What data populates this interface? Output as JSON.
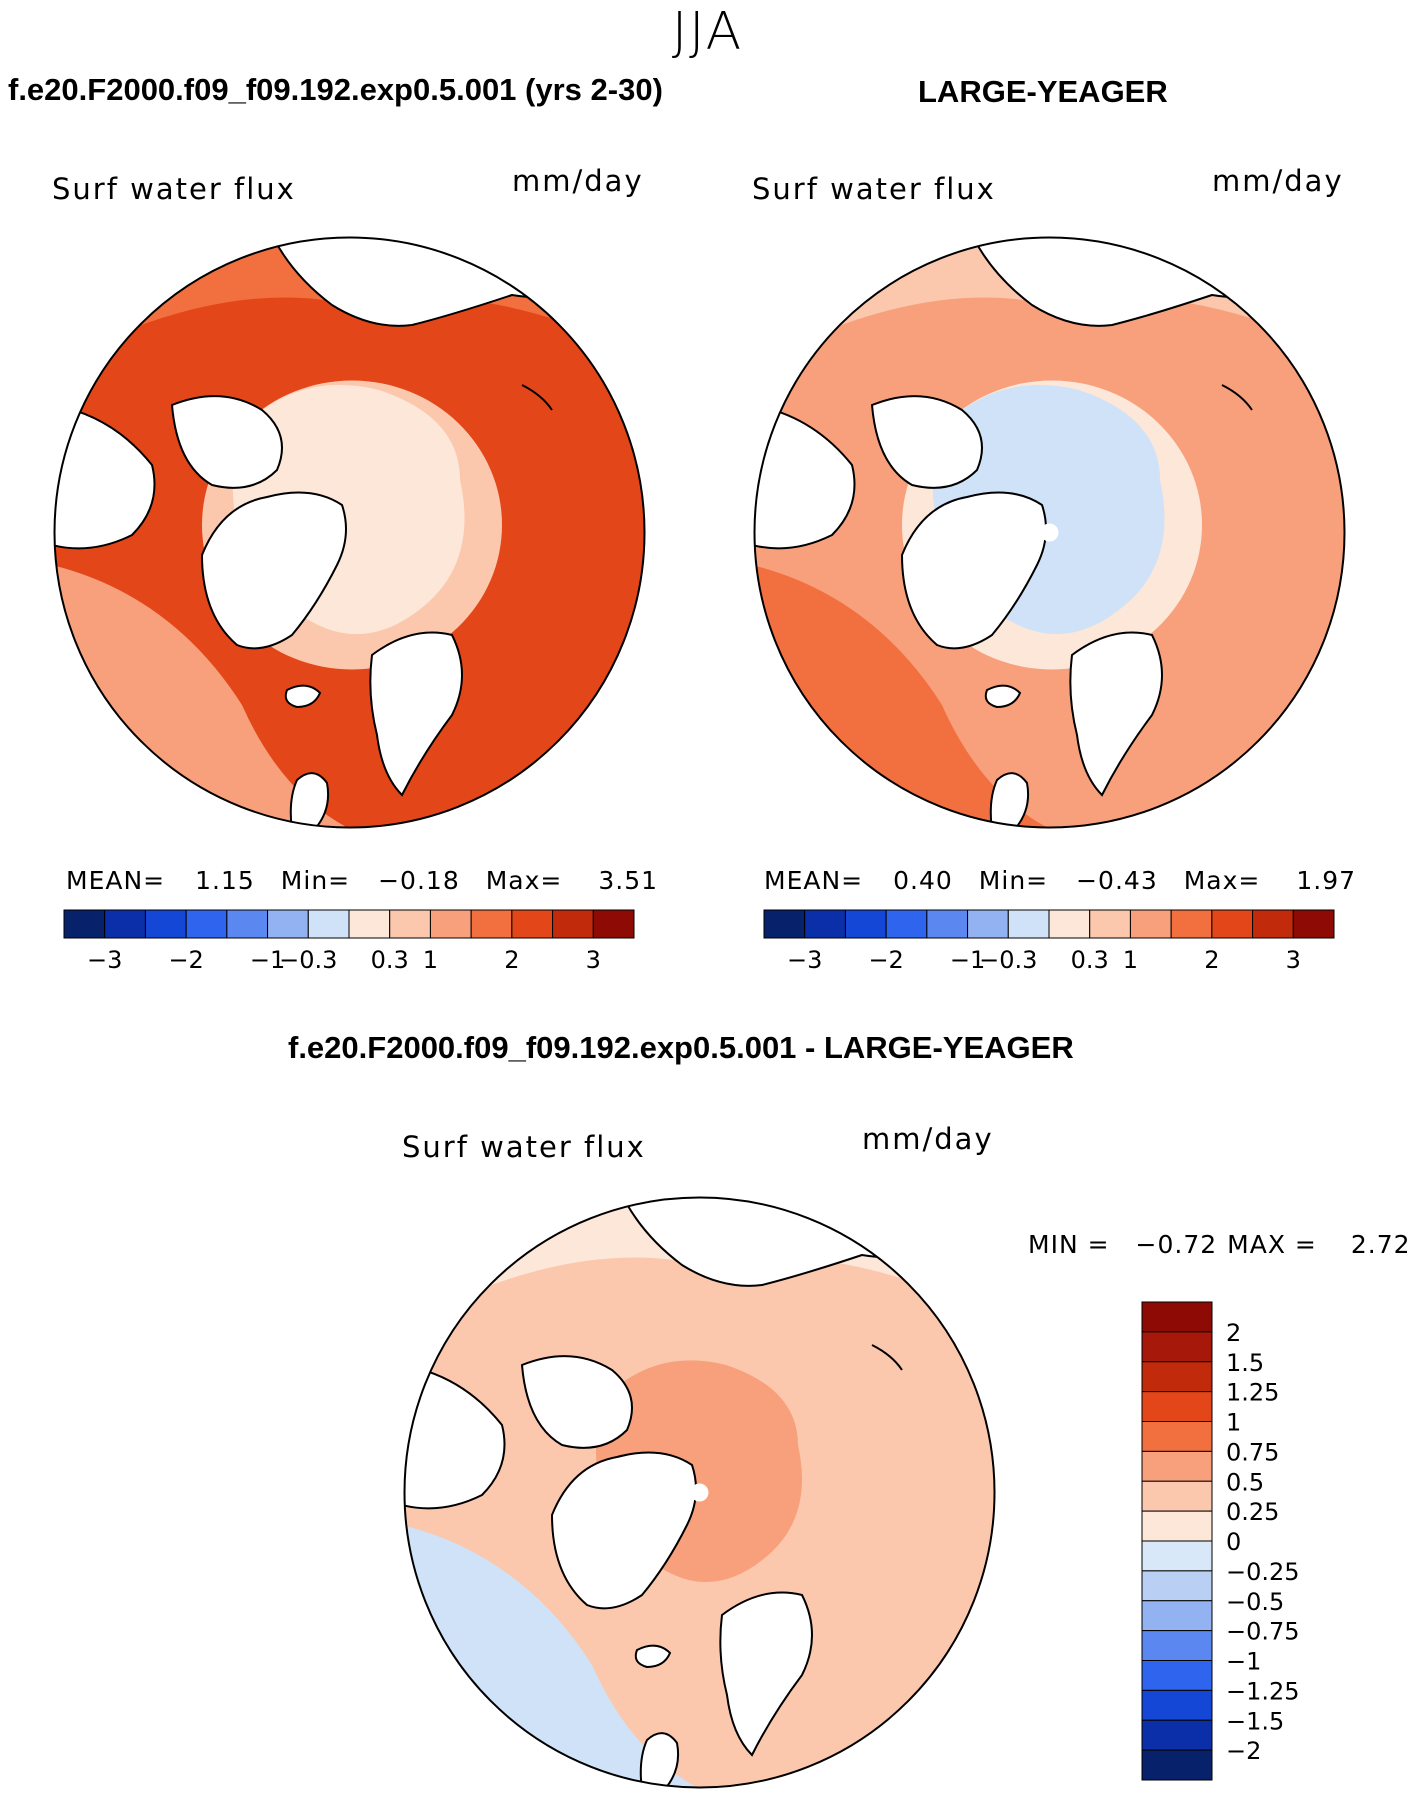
{
  "season": "JJA",
  "colors": {
    "land": "#ffffff",
    "coast": "#000000",
    "ramp14": [
      "#08216b",
      "#0b2fa8",
      "#1547d6",
      "#2f64ee",
      "#5a87f0",
      "#92b2f2",
      "#cfe2f7",
      "#fde7d9",
      "#fbc8ae",
      "#f8a07c",
      "#f2703f",
      "#e34619",
      "#c22a0c",
      "#8d0b04"
    ],
    "ramp16": [
      "#08216b",
      "#0b2fa8",
      "#1547d6",
      "#2f64ee",
      "#5a87f0",
      "#92b2f2",
      "#b9d0f4",
      "#d8e8f8",
      "#fde7d9",
      "#fbc8ae",
      "#f8a07c",
      "#f2703f",
      "#e34619",
      "#c22a0c",
      "#a6180a",
      "#8d0b04"
    ]
  },
  "panels": [
    {
      "title": "f.e20.F2000.f09_f09.192.exp0.5.001 (yrs 2-30)",
      "variable": "Surf water flux",
      "units": "mm/day",
      "stats": {
        "mean_label": "MEAN=",
        "mean": "1.15",
        "min_label": "Min=",
        "min": "−0.18",
        "max_label": "Max=",
        "max": "3.51"
      },
      "field": {
        "ocean_base": 11,
        "pole_level": 7,
        "pole_extent": 0.55,
        "atlantic_level": 9,
        "nearpole_level": 8,
        "pacific_level": 10
      }
    },
    {
      "title": "LARGE-YEAGER",
      "variable": "Surf water flux",
      "units": "mm/day",
      "stats": {
        "mean_label": "MEAN=",
        "mean": "0.40",
        "min_label": "Min=",
        "min": "−0.43",
        "max_label": "Max=",
        "max": "1.97"
      },
      "field": {
        "ocean_base": 9,
        "pole_level": 6,
        "pole_extent": 0.55,
        "atlantic_level": 10,
        "nearpole_level": 7,
        "pacific_level": 8
      }
    }
  ],
  "colorbar_ticks": [
    "−3",
    "−2",
    "−1",
    "−0.3",
    "0.3",
    "1",
    "2",
    "3"
  ],
  "diff": {
    "title": "f.e20.F2000.f09_f09.192.exp0.5.001 - LARGE-YEAGER",
    "variable": "Surf water flux",
    "units": "mm/day",
    "min_label": "MIN =",
    "min": "−0.72",
    "max_label": "MAX =",
    "max": "2.72",
    "labels": [
      "2",
      "1.5",
      "1.25",
      "1",
      "0.75",
      "0.5",
      "0.25",
      "0",
      "−0.25",
      "−0.5",
      "−0.75",
      "−1",
      "−1.25",
      "−1.5",
      "−2"
    ],
    "field": {
      "ocean_base": 8,
      "pole_level": 9,
      "pole_extent": 0.45,
      "atlantic_level": 6,
      "nearpole_level": 8,
      "pacific_level": 7
    }
  },
  "chart_data": {
    "type": "heatmap",
    "projection": "north polar stereographic",
    "season": "JJA",
    "maps": [
      {
        "name": "f.e20.F2000.f09_f09.192.exp0.5.001 (yrs 2-30)",
        "variable": "Surf water flux",
        "units": "mm/day",
        "mean": 1.15,
        "min": -0.18,
        "max": 3.51,
        "contour_levels": [
          -3,
          -2.5,
          -2,
          -1.5,
          -1,
          -0.3,
          0,
          0.3,
          1,
          1.5,
          2,
          2.5,
          3
        ]
      },
      {
        "name": "LARGE-YEAGER",
        "variable": "Surf water flux",
        "units": "mm/day",
        "mean": 0.4,
        "min": -0.43,
        "max": 1.97,
        "contour_levels": [
          -3,
          -2.5,
          -2,
          -1.5,
          -1,
          -0.3,
          0,
          0.3,
          1,
          1.5,
          2,
          2.5,
          3
        ]
      },
      {
        "name": "f.e20.F2000.f09_f09.192.exp0.5.001 - LARGE-YEAGER",
        "variable": "Surf water flux",
        "units": "mm/day",
        "min": -0.72,
        "max": 2.72,
        "contour_levels": [
          -2,
          -1.5,
          -1.25,
          -1,
          -0.75,
          -0.5,
          -0.25,
          0,
          0.25,
          0.5,
          0.75,
          1,
          1.25,
          1.5,
          2
        ]
      }
    ]
  }
}
